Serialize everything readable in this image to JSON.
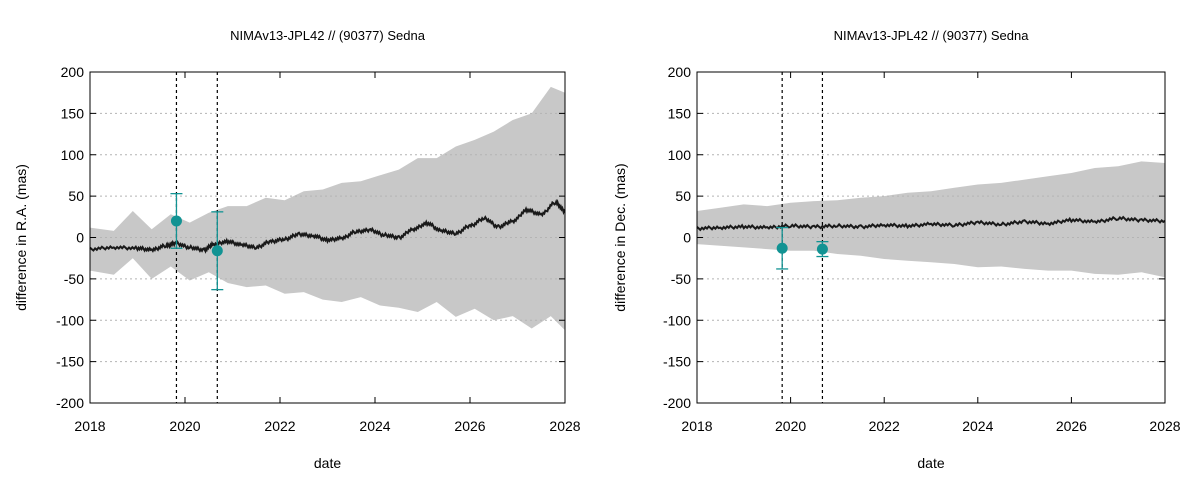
{
  "colors": {
    "band": "#c8c8c8",
    "line": "#1a1a1a",
    "obs": "#129393",
    "grid": "#b4b4b4",
    "frame": "#000000"
  },
  "chart_data": [
    {
      "type": "line",
      "title": "NIMAv13-JPL42 // (90377) Sedna",
      "xlabel": "date",
      "ylabel": "difference in R.A. (mas)",
      "xlim": [
        2018,
        2028
      ],
      "ylim": [
        -200,
        200
      ],
      "xticks": [
        "2018",
        "2020",
        "2022",
        "2024",
        "2026",
        "2028"
      ],
      "yticks": [
        "200",
        "150",
        "100",
        "50",
        "0",
        "-50",
        "-100",
        "-150",
        "-200"
      ],
      "grid": true,
      "vlines": [
        2019.82,
        2020.68
      ],
      "line": {
        "name": "difference",
        "x": [
          2018.0,
          2018.5,
          2019.0,
          2019.3,
          2019.6,
          2019.8,
          2020.1,
          2020.4,
          2020.6,
          2020.9,
          2021.2,
          2021.5,
          2021.8,
          2022.1,
          2022.4,
          2022.7,
          2023.0,
          2023.3,
          2023.6,
          2023.9,
          2024.2,
          2024.5,
          2024.8,
          2025.1,
          2025.4,
          2025.7,
          2026.0,
          2026.3,
          2026.6,
          2026.9,
          2027.2,
          2027.5,
          2027.8,
          2028.0
        ],
        "y": [
          -14,
          -12,
          -13,
          -15,
          -10,
          -7,
          -12,
          -15,
          -8,
          -5,
          -9,
          -12,
          -5,
          -2,
          4,
          2,
          -3,
          -1,
          7,
          9,
          3,
          0,
          10,
          17,
          8,
          5,
          14,
          23,
          13,
          20,
          33,
          28,
          42,
          32
        ]
      },
      "band": {
        "x": [
          2018.0,
          2018.5,
          2018.9,
          2019.3,
          2019.7,
          2020.1,
          2020.5,
          2020.9,
          2021.3,
          2021.7,
          2022.1,
          2022.5,
          2022.9,
          2023.3,
          2023.7,
          2024.1,
          2024.5,
          2024.9,
          2025.3,
          2025.7,
          2026.1,
          2026.5,
          2026.9,
          2027.3,
          2027.7,
          2028.0
        ],
        "upper": [
          12,
          8,
          32,
          10,
          28,
          18,
          30,
          38,
          38,
          48,
          45,
          56,
          58,
          66,
          68,
          75,
          82,
          96,
          96,
          110,
          118,
          128,
          142,
          150,
          182,
          175
        ],
        "lower": [
          -40,
          -45,
          -25,
          -50,
          -35,
          -52,
          -42,
          -55,
          -60,
          -58,
          -68,
          -66,
          -75,
          -78,
          -72,
          -82,
          -85,
          -90,
          -78,
          -96,
          -86,
          -100,
          -95,
          -110,
          -95,
          -112
        ]
      },
      "points": [
        {
          "x": 2019.82,
          "y": 20,
          "err": 33
        },
        {
          "x": 2020.68,
          "y": -16,
          "err": 47
        }
      ]
    },
    {
      "type": "line",
      "title": "NIMAv13-JPL42 // (90377) Sedna",
      "xlabel": "date",
      "ylabel": "difference in Dec. (mas)",
      "xlim": [
        2018,
        2028
      ],
      "ylim": [
        -200,
        200
      ],
      "xticks": [
        "2018",
        "2020",
        "2022",
        "2024",
        "2026",
        "2028"
      ],
      "yticks": [
        "200",
        "150",
        "100",
        "50",
        "0",
        "-50",
        "-100",
        "-150",
        "-200"
      ],
      "grid": true,
      "vlines": [
        2019.82,
        2020.68
      ],
      "line": {
        "name": "difference",
        "x": [
          2018.0,
          2018.5,
          2019.0,
          2019.5,
          2020.0,
          2020.5,
          2021.0,
          2021.5,
          2022.0,
          2022.5,
          2023.0,
          2023.5,
          2024.0,
          2024.5,
          2025.0,
          2025.5,
          2026.0,
          2026.5,
          2027.0,
          2027.5,
          2028.0
        ],
        "y": [
          11,
          12,
          13,
          12,
          14,
          13,
          14,
          13,
          15,
          14,
          16,
          15,
          18,
          16,
          19,
          17,
          21,
          19,
          23,
          21,
          20
        ]
      },
      "band": {
        "x": [
          2018.0,
          2018.5,
          2019.0,
          2019.5,
          2020.0,
          2020.5,
          2021.0,
          2021.5,
          2022.0,
          2022.5,
          2023.0,
          2023.5,
          2024.0,
          2024.5,
          2025.0,
          2025.5,
          2026.0,
          2026.5,
          2027.0,
          2027.5,
          2028.0
        ],
        "upper": [
          32,
          36,
          40,
          38,
          42,
          44,
          45,
          48,
          50,
          54,
          56,
          60,
          64,
          66,
          70,
          74,
          78,
          84,
          86,
          92,
          90
        ],
        "lower": [
          -8,
          -10,
          -12,
          -14,
          -16,
          -16,
          -20,
          -22,
          -26,
          -28,
          -30,
          -32,
          -36,
          -35,
          -38,
          -40,
          -40,
          -44,
          -45,
          -42,
          -48
        ]
      },
      "points": [
        {
          "x": 2019.82,
          "y": -13,
          "err": 25
        },
        {
          "x": 2020.68,
          "y": -14,
          "err": 9
        }
      ]
    }
  ]
}
